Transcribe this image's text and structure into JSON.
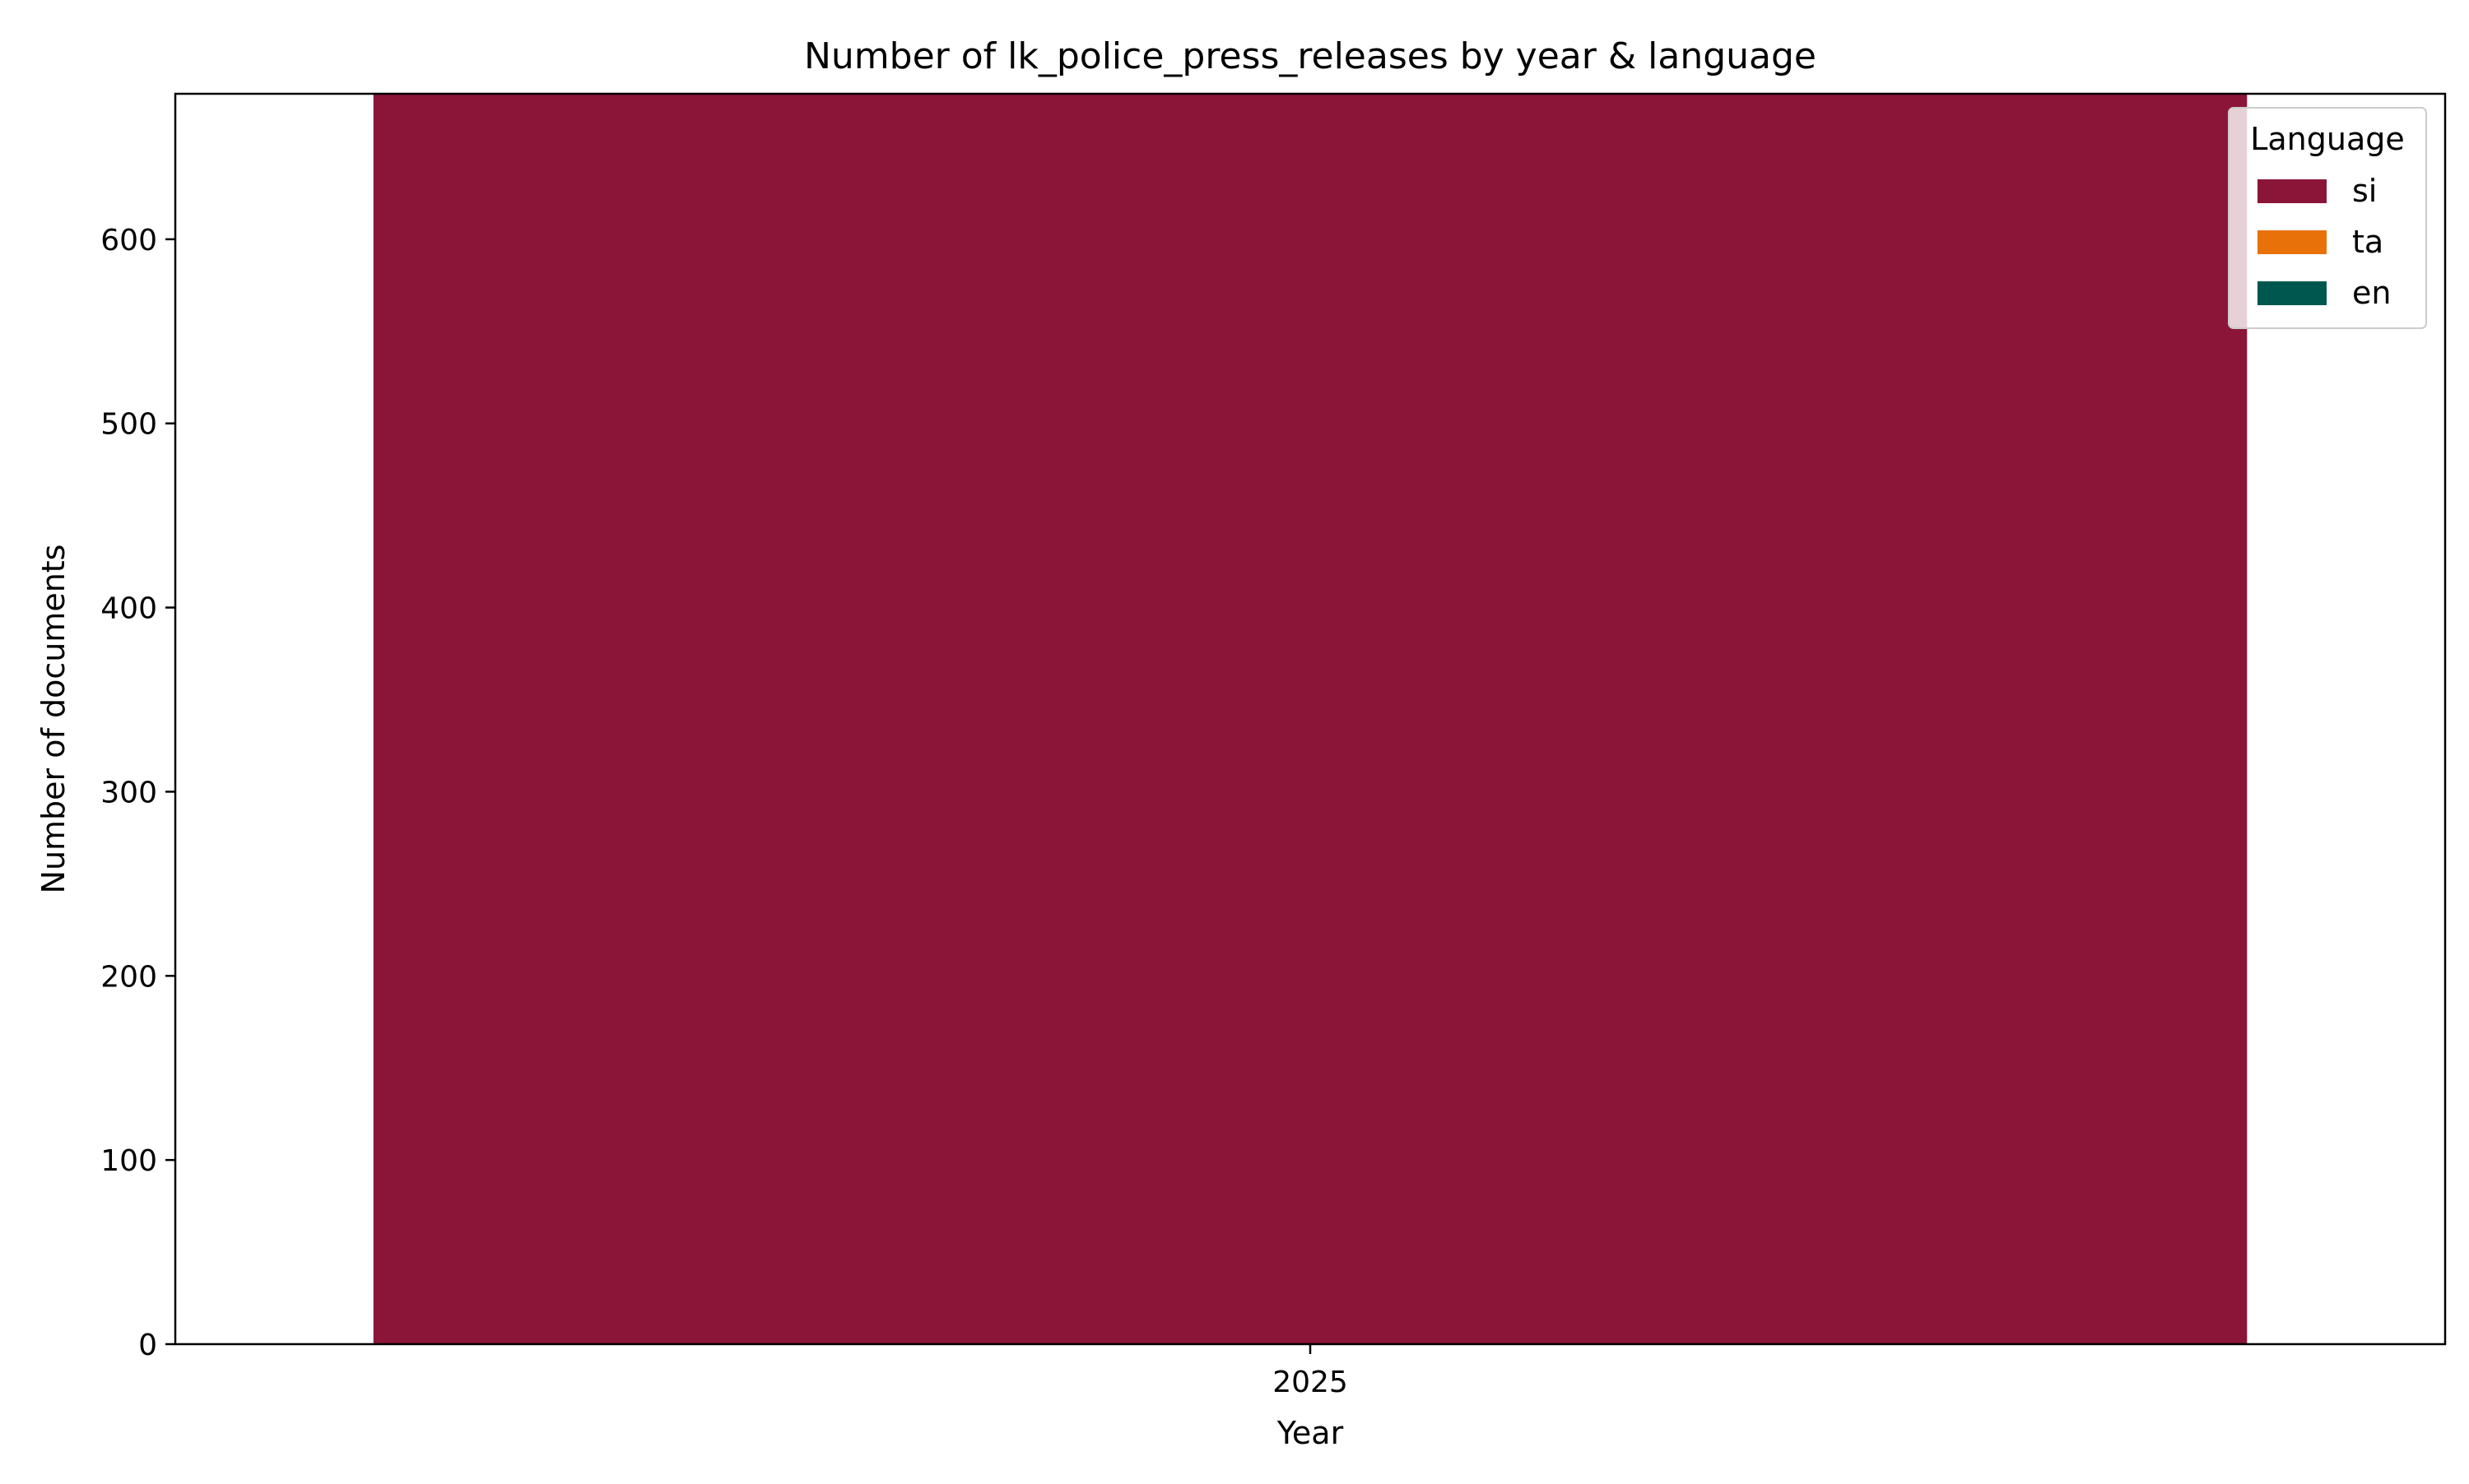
{
  "chart_data": {
    "type": "bar",
    "stacked": true,
    "title": "Number of lk_police_press_releases by year & language",
    "xlabel": "Year",
    "ylabel": "Number of documents",
    "categories": [
      "2025"
    ],
    "series": [
      {
        "name": "si",
        "values": [
          679
        ],
        "color": "#8b1538"
      },
      {
        "name": "ta",
        "values": [
          0
        ],
        "color": "#e8710a"
      },
      {
        "name": "en",
        "values": [
          0
        ],
        "color": "#00574f"
      }
    ],
    "ylim": [
      0,
      679
    ],
    "yticks": [
      0,
      100,
      200,
      300,
      400,
      500,
      600
    ],
    "grid": false,
    "legend": {
      "title": "Language",
      "position": "top-right"
    }
  }
}
